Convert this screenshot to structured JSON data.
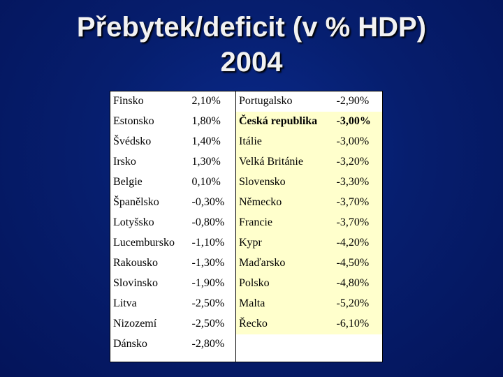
{
  "title": {
    "line1": "Přebytek/deficit (v % HDP)",
    "line2": "2004"
  },
  "table": {
    "rows": [
      {
        "left_country": "Finsko",
        "left_value": "2,10%",
        "right_country": "Portugalsko",
        "right_value": "-2,90%",
        "right_highlight": false
      },
      {
        "left_country": "Estonsko",
        "left_value": "1,80%",
        "right_country": "Česká republika",
        "right_value": "-3,00%",
        "right_highlight": true
      },
      {
        "left_country": "Švédsko",
        "left_value": "1,40%",
        "right_country": "Itálie",
        "right_value": "-3,00%",
        "right_highlight": true
      },
      {
        "left_country": "Irsko",
        "left_value": "1,30%",
        "right_country": "Velká Británie",
        "right_value": "-3,20%",
        "right_highlight": true
      },
      {
        "left_country": "Belgie",
        "left_value": "0,10%",
        "right_country": "Slovensko",
        "right_value": "-3,30%",
        "right_highlight": true
      },
      {
        "left_country": "Španělsko",
        "left_value": "-0,30%",
        "right_country": "Německo",
        "right_value": "-3,70%",
        "right_highlight": true
      },
      {
        "left_country": "Lotyšsko",
        "left_value": "-0,80%",
        "right_country": "Francie",
        "right_value": "-3,70%",
        "right_highlight": true
      },
      {
        "left_country": "Lucembursko",
        "left_value": "-1,10%",
        "right_country": "Kypr",
        "right_value": "-4,20%",
        "right_highlight": true
      },
      {
        "left_country": "Rakousko",
        "left_value": "-1,30%",
        "right_country": "Maďarsko",
        "right_value": "-4,50%",
        "right_highlight": true
      },
      {
        "left_country": "Slovinsko",
        "left_value": "-1,90%",
        "right_country": "Polsko",
        "right_value": "-4,80%",
        "right_highlight": true
      },
      {
        "left_country": "Litva",
        "left_value": "-2,50%",
        "right_country": "Malta",
        "right_value": "-5,20%",
        "right_highlight": true
      },
      {
        "left_country": "Nizozemí",
        "left_value": "-2,50%",
        "right_country": "Řecko",
        "right_value": "-6,10%",
        "right_highlight": true
      },
      {
        "left_country": "Dánsko",
        "left_value": "-2,80%",
        "right_country": "",
        "right_value": "",
        "right_highlight": false
      }
    ]
  },
  "colors": {
    "background": "#061e6e",
    "highlight": "#ffffcc",
    "title_text": "#f2f2f2"
  }
}
